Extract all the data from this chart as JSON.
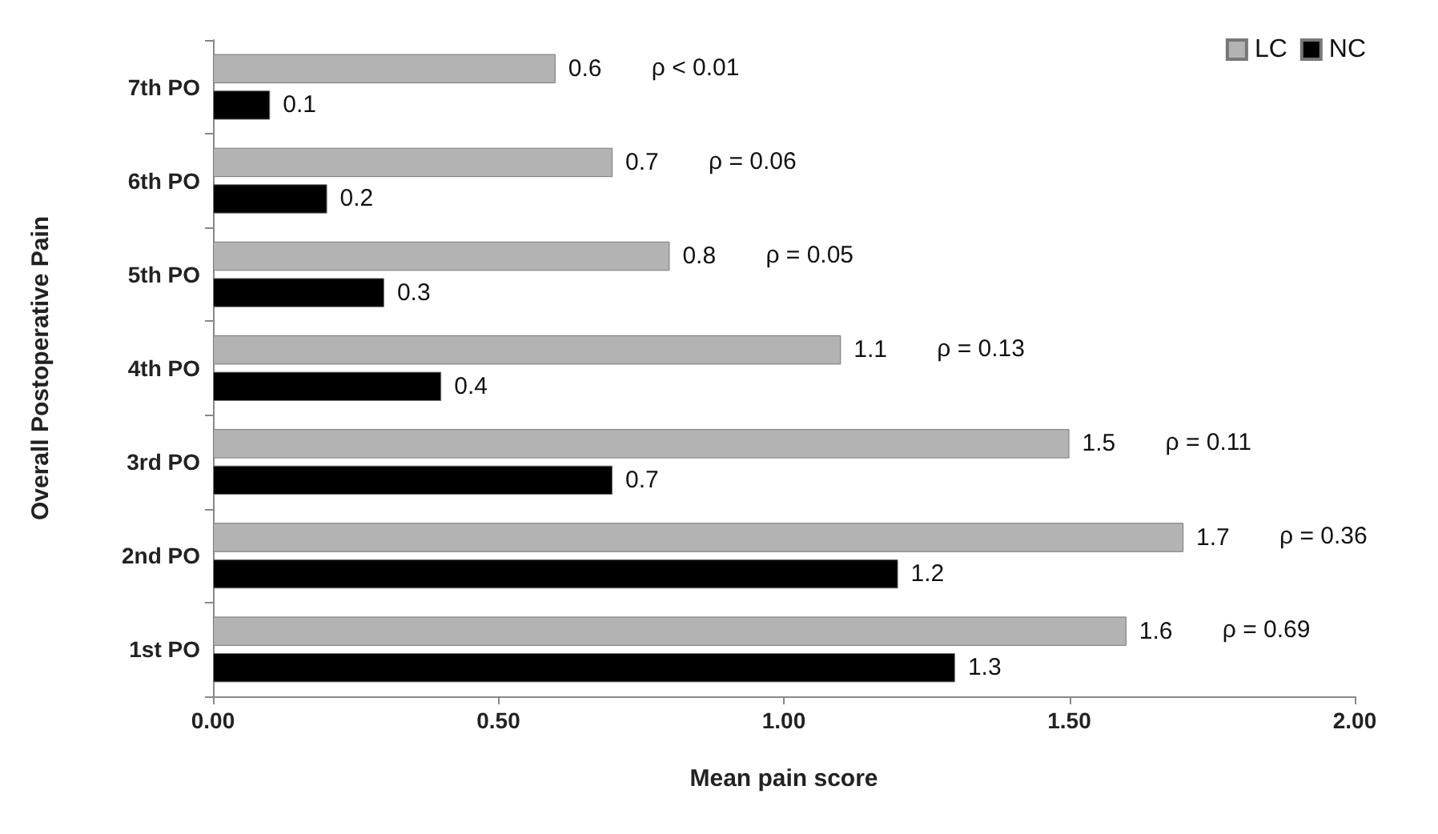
{
  "chart_data": {
    "type": "bar",
    "orientation": "horizontal",
    "xlabel": "Mean pain score",
    "ylabel": "Overall Postoperative Pain",
    "categories": [
      "7th PO",
      "6th PO",
      "5th PO",
      "4th PO",
      "3rd PO",
      "2nd PO",
      "1st PO"
    ],
    "series": [
      {
        "name": "LC",
        "color": "#b3b3b3",
        "values": [
          0.6,
          0.7,
          0.8,
          1.1,
          1.5,
          1.7,
          1.6
        ]
      },
      {
        "name": "NC",
        "color": "#000000",
        "values": [
          0.1,
          0.2,
          0.3,
          0.4,
          0.7,
          1.2,
          1.3
        ]
      }
    ],
    "xlim": [
      0,
      2
    ],
    "xticks": [
      {
        "value": 0,
        "label": "0.00"
      },
      {
        "value": 0.5,
        "label": "0.50"
      },
      {
        "value": 1,
        "label": "1.00"
      },
      {
        "value": 1.5,
        "label": "1.50"
      },
      {
        "value": 2,
        "label": "2.00"
      }
    ],
    "data_labels": true,
    "legend": "top right",
    "grid": false,
    "annotations": [
      "ρ < 0.01",
      "ρ = 0.06",
      "ρ = 0.05",
      "ρ = 0.13",
      "ρ = 0.11",
      "ρ = 0.36",
      "ρ = 0.69"
    ]
  }
}
